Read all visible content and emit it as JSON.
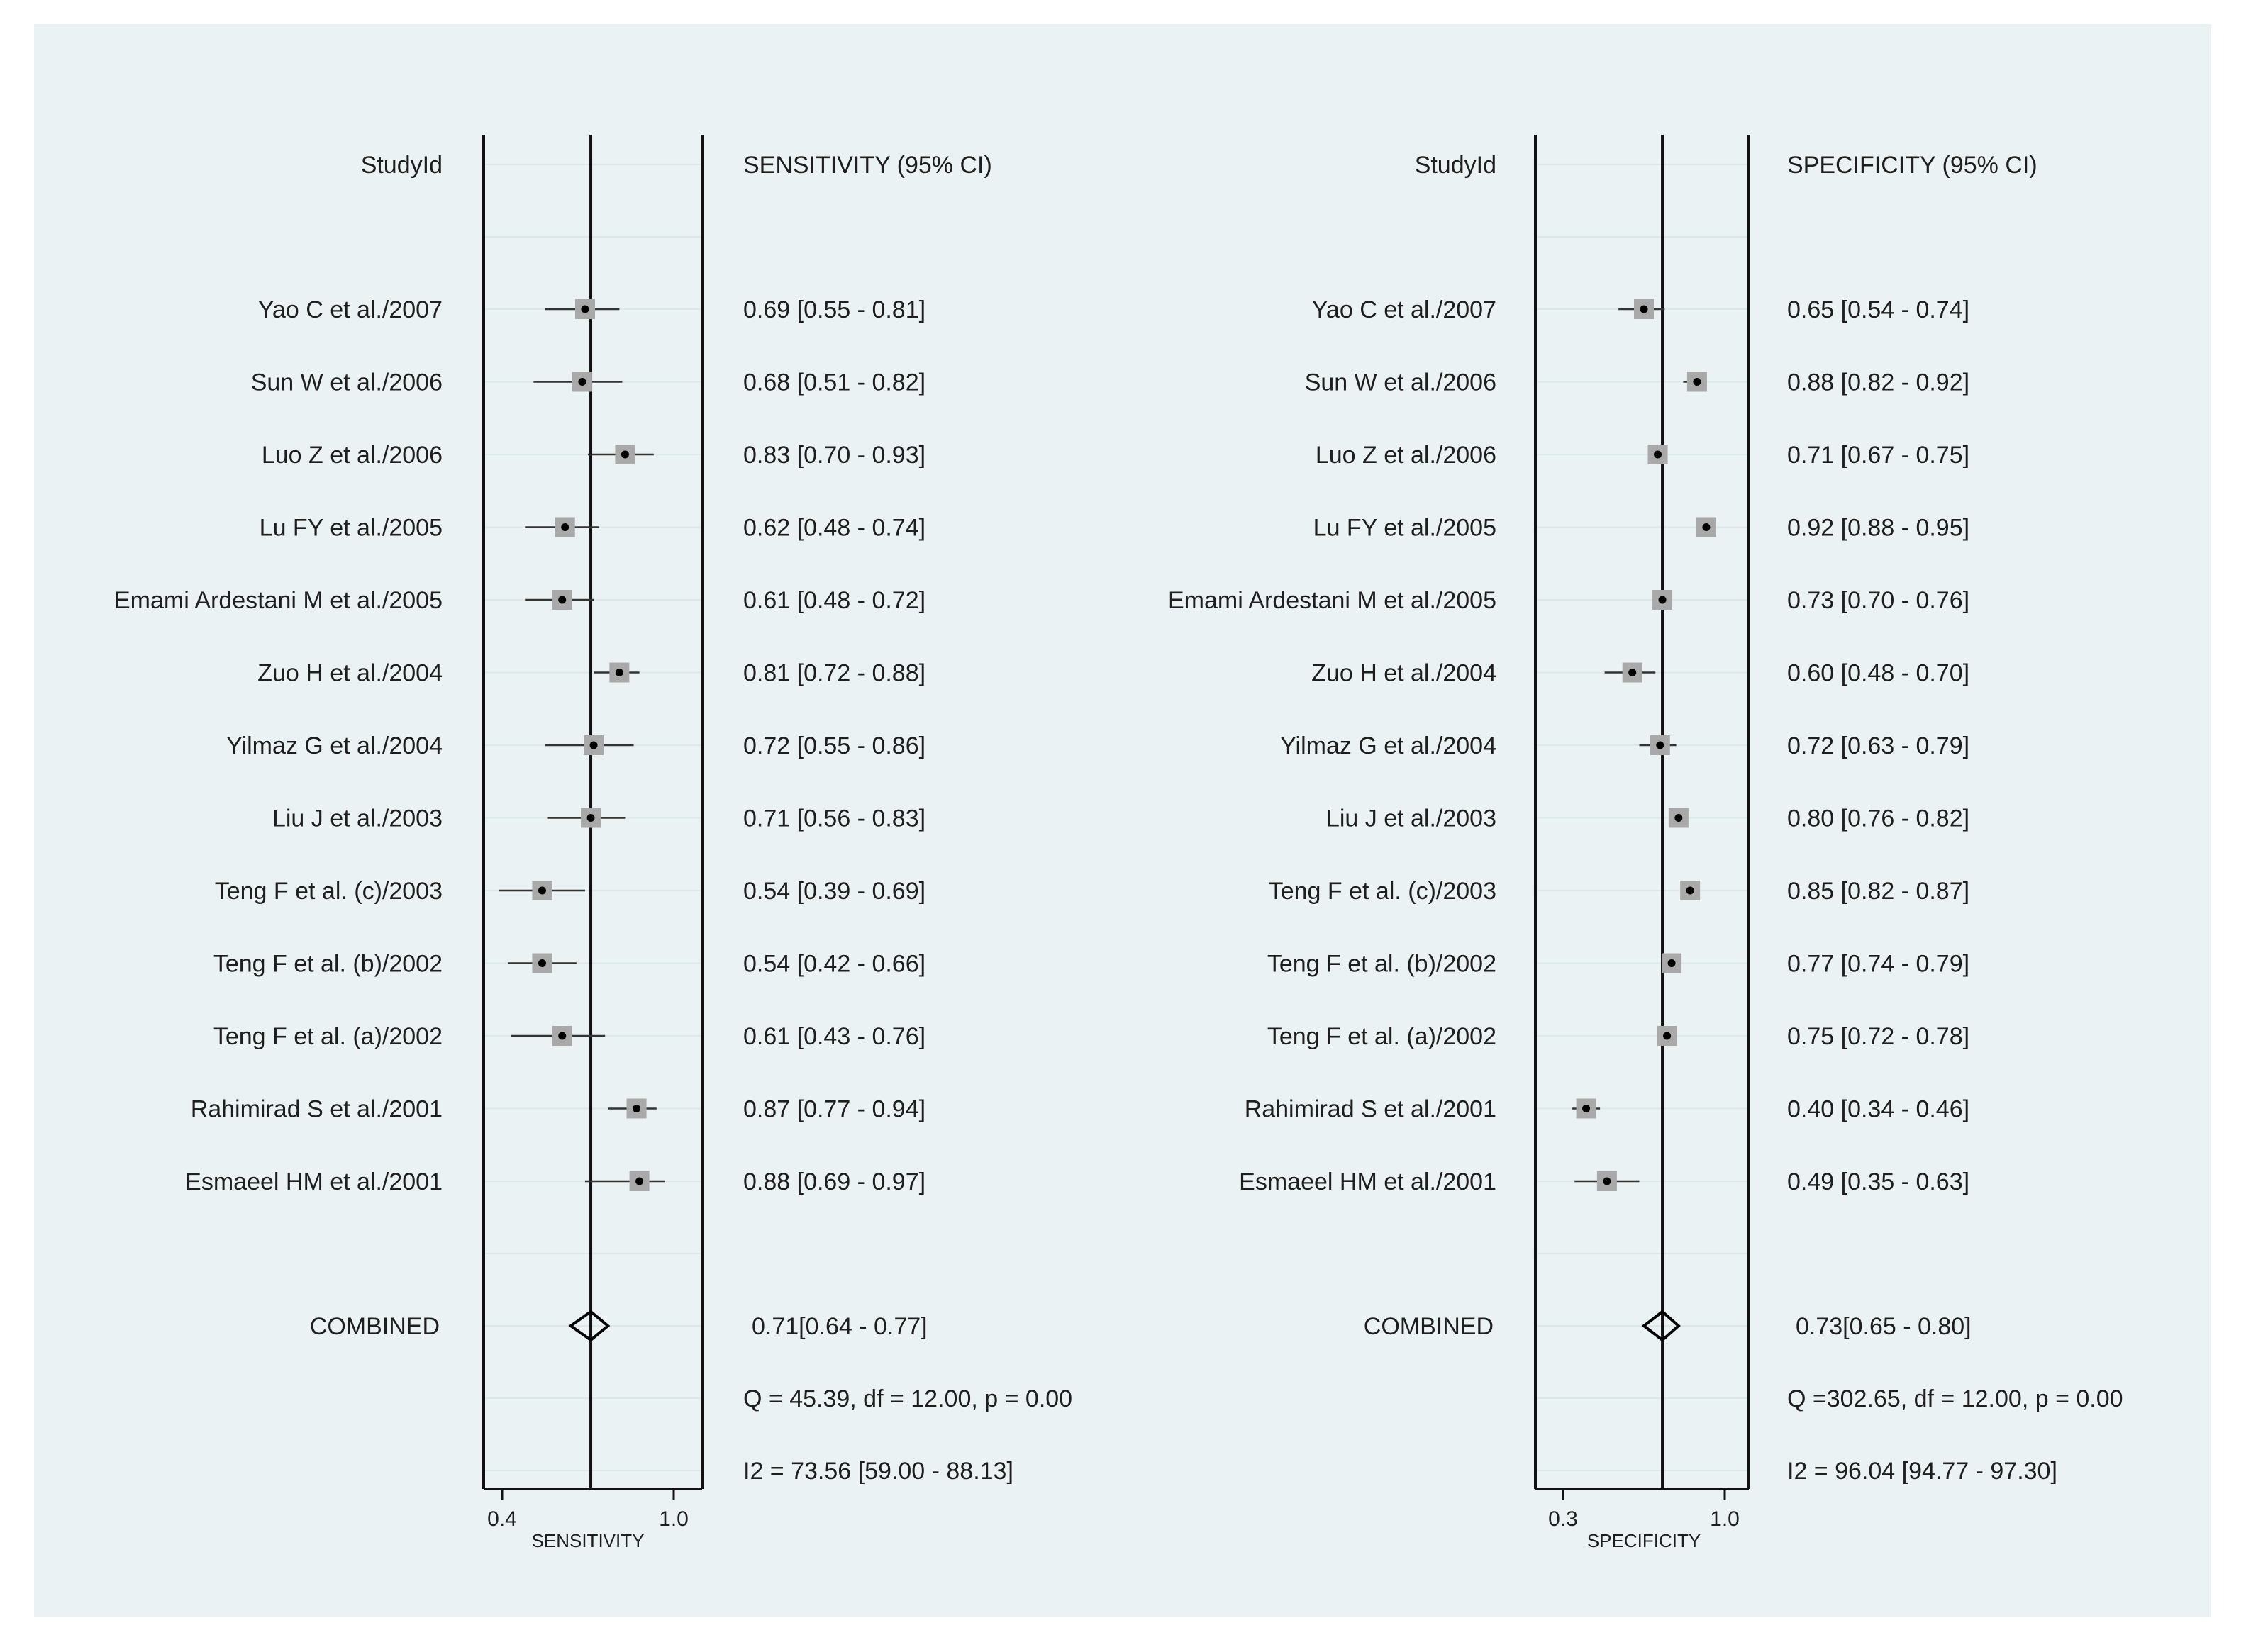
{
  "charts": [
    {
      "type": "forest",
      "study_header": "StudyId",
      "stat_header": "SENSITIVITY (95% CI)",
      "xlabel": "SENSITIVITY",
      "xlim": [
        0.4,
        1.0
      ],
      "xticks": [
        {
          "value": 0.4,
          "label": "0.4"
        },
        {
          "value": 1.0,
          "label": "1.0"
        }
      ],
      "pooled_value": 0.71,
      "studies": [
        {
          "name": "Yao C et al./2007",
          "est": 0.69,
          "lo": 0.55,
          "hi": 0.81,
          "text": "0.69 [0.55 - 0.81]"
        },
        {
          "name": "Sun W et al./2006",
          "est": 0.68,
          "lo": 0.51,
          "hi": 0.82,
          "text": "0.68 [0.51 - 0.82]"
        },
        {
          "name": "Luo Z et al./2006",
          "est": 0.83,
          "lo": 0.7,
          "hi": 0.93,
          "text": "0.83 [0.70 - 0.93]"
        },
        {
          "name": "Lu FY et al./2005",
          "est": 0.62,
          "lo": 0.48,
          "hi": 0.74,
          "text": "0.62 [0.48 - 0.74]"
        },
        {
          "name": "Emami Ardestani M et al./2005",
          "est": 0.61,
          "lo": 0.48,
          "hi": 0.72,
          "text": "0.61 [0.48 - 0.72]"
        },
        {
          "name": "Zuo H et al./2004",
          "est": 0.81,
          "lo": 0.72,
          "hi": 0.88,
          "text": "0.81 [0.72 - 0.88]"
        },
        {
          "name": "Yilmaz G et al./2004",
          "est": 0.72,
          "lo": 0.55,
          "hi": 0.86,
          "text": "0.72 [0.55 - 0.86]"
        },
        {
          "name": "Liu J et al./2003",
          "est": 0.71,
          "lo": 0.56,
          "hi": 0.83,
          "text": "0.71 [0.56 - 0.83]"
        },
        {
          "name": "Teng F et al. (c)/2003",
          "est": 0.54,
          "lo": 0.39,
          "hi": 0.69,
          "text": "0.54 [0.39 - 0.69]"
        },
        {
          "name": "Teng F et al. (b)/2002",
          "est": 0.54,
          "lo": 0.42,
          "hi": 0.66,
          "text": "0.54 [0.42 - 0.66]"
        },
        {
          "name": "Teng F et al. (a)/2002",
          "est": 0.61,
          "lo": 0.43,
          "hi": 0.76,
          "text": "0.61 [0.43 - 0.76]"
        },
        {
          "name": "Rahimirad S et al./2001",
          "est": 0.87,
          "lo": 0.77,
          "hi": 0.94,
          "text": "0.87 [0.77 - 0.94]"
        },
        {
          "name": "Esmaeel HM et al./2001",
          "est": 0.88,
          "lo": 0.69,
          "hi": 0.97,
          "text": "0.88 [0.69 - 0.97]"
        }
      ],
      "combined": {
        "name": "COMBINED",
        "est": 0.71,
        "lo": 0.64,
        "hi": 0.77,
        "text": "0.71[0.64 - 0.77]"
      },
      "q_text": "Q = 45.39, df = 12.00, p =  0.00",
      "i2_text": "I2 = 73.56 [59.00 - 88.13]"
    },
    {
      "type": "forest",
      "study_header": "StudyId",
      "stat_header": "SPECIFICITY (95% CI)",
      "xlabel": "SPECIFICITY",
      "xlim": [
        0.3,
        1.0
      ],
      "xticks": [
        {
          "value": 0.3,
          "label": "0.3"
        },
        {
          "value": 1.0,
          "label": "1.0"
        }
      ],
      "pooled_value": 0.73,
      "studies": [
        {
          "name": "Yao C et al./2007",
          "est": 0.65,
          "lo": 0.54,
          "hi": 0.74,
          "text": "0.65 [0.54 - 0.74]"
        },
        {
          "name": "Sun W et al./2006",
          "est": 0.88,
          "lo": 0.82,
          "hi": 0.92,
          "text": "0.88 [0.82 - 0.92]"
        },
        {
          "name": "Luo Z et al./2006",
          "est": 0.71,
          "lo": 0.67,
          "hi": 0.75,
          "text": "0.71 [0.67 - 0.75]"
        },
        {
          "name": "Lu FY et al./2005",
          "est": 0.92,
          "lo": 0.88,
          "hi": 0.95,
          "text": "0.92 [0.88 - 0.95]"
        },
        {
          "name": "Emami Ardestani M et al./2005",
          "est": 0.73,
          "lo": 0.7,
          "hi": 0.76,
          "text": "0.73 [0.70 - 0.76]"
        },
        {
          "name": "Zuo H et al./2004",
          "est": 0.6,
          "lo": 0.48,
          "hi": 0.7,
          "text": "0.60 [0.48 - 0.70]"
        },
        {
          "name": "Yilmaz G et al./2004",
          "est": 0.72,
          "lo": 0.63,
          "hi": 0.79,
          "text": "0.72 [0.63 - 0.79]"
        },
        {
          "name": "Liu J et al./2003",
          "est": 0.8,
          "lo": 0.76,
          "hi": 0.82,
          "text": "0.80 [0.76 - 0.82]"
        },
        {
          "name": "Teng F et al. (c)/2003",
          "est": 0.85,
          "lo": 0.82,
          "hi": 0.87,
          "text": "0.85 [0.82 - 0.87]"
        },
        {
          "name": "Teng F et al. (b)/2002",
          "est": 0.77,
          "lo": 0.74,
          "hi": 0.79,
          "text": "0.77 [0.74 - 0.79]"
        },
        {
          "name": "Teng F et al. (a)/2002",
          "est": 0.75,
          "lo": 0.72,
          "hi": 0.78,
          "text": "0.75 [0.72 - 0.78]"
        },
        {
          "name": "Rahimirad S et al./2001",
          "est": 0.4,
          "lo": 0.34,
          "hi": 0.46,
          "text": "0.40 [0.34 - 0.46]"
        },
        {
          "name": "Esmaeel HM et al./2001",
          "est": 0.49,
          "lo": 0.35,
          "hi": 0.63,
          "text": "0.49 [0.35 - 0.63]"
        }
      ],
      "combined": {
        "name": "COMBINED",
        "est": 0.73,
        "lo": 0.65,
        "hi": 0.8,
        "text": "0.73[0.65 - 0.80]"
      },
      "q_text": "Q =302.65, df = 12.00, p =  0.00",
      "i2_text": "I2 = 96.04 [94.77 - 97.30]"
    }
  ]
}
